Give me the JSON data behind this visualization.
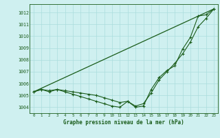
{
  "title": "Graphe pression niveau de la mer (hPa)",
  "background_color": "#cff0f0",
  "grid_color": "#aadddd",
  "line_color": "#1a5c1a",
  "ylim": [
    1003.5,
    1012.7
  ],
  "yticks": [
    1004,
    1005,
    1006,
    1007,
    1008,
    1009,
    1010,
    1011,
    1012
  ],
  "xlim": [
    -0.5,
    23.5
  ],
  "xticks": [
    0,
    1,
    2,
    3,
    4,
    5,
    6,
    7,
    8,
    9,
    10,
    11,
    12,
    13,
    14,
    15,
    16,
    17,
    18,
    19,
    20,
    21,
    22,
    23
  ],
  "series1_x": [
    0,
    1,
    2,
    3,
    4,
    5,
    6,
    7,
    8,
    9,
    10,
    11,
    12,
    13,
    14,
    15,
    16,
    17,
    18,
    19,
    20,
    21,
    22,
    23
  ],
  "series1_y": [
    1005.3,
    1005.5,
    1005.3,
    1005.5,
    1005.3,
    1005.1,
    1004.9,
    1004.7,
    1004.5,
    1004.3,
    1004.1,
    1004.0,
    1004.5,
    1004.0,
    1004.1,
    1005.5,
    1006.5,
    1007.1,
    1007.5,
    1008.9,
    1009.9,
    1011.7,
    1011.8,
    1012.3
  ],
  "series2_x": [
    0,
    1,
    2,
    3,
    4,
    5,
    6,
    7,
    8,
    9,
    10,
    11,
    12,
    13,
    14,
    15,
    16,
    17,
    18,
    19,
    20,
    21,
    22,
    23
  ],
  "series2_y": [
    1005.3,
    1005.5,
    1005.4,
    1005.5,
    1005.4,
    1005.3,
    1005.2,
    1005.1,
    1005.0,
    1004.8,
    1004.6,
    1004.4,
    1004.5,
    1004.1,
    1004.3,
    1005.2,
    1006.3,
    1007.0,
    1007.7,
    1008.5,
    1009.5,
    1010.8,
    1011.5,
    1012.3
  ],
  "series3_x": [
    0,
    23
  ],
  "series3_y": [
    1005.3,
    1012.3
  ]
}
